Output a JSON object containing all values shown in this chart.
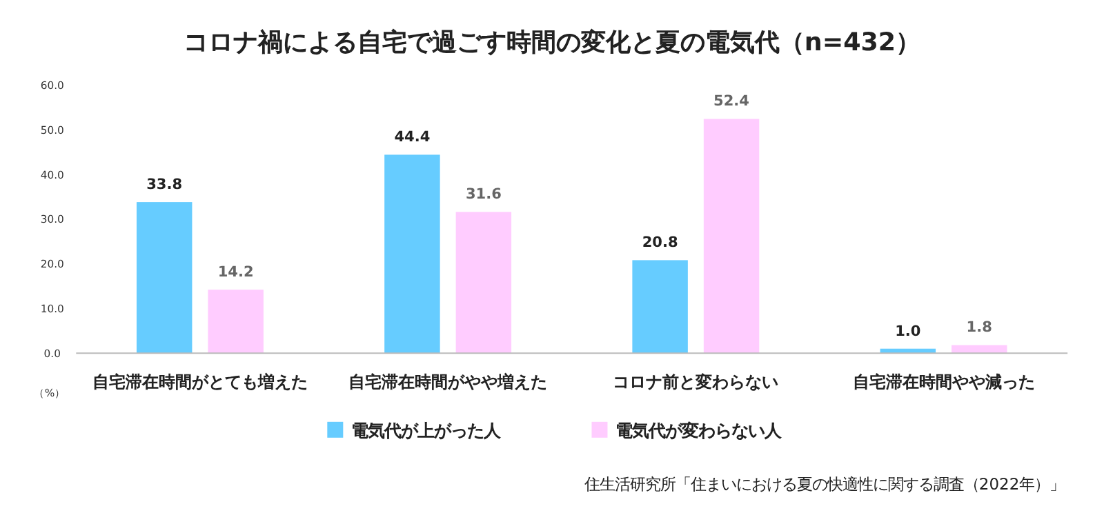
{
  "chart_data": {
    "type": "bar",
    "title": "コロナ禍による自宅で過ごす時間の変化と夏の電気代（n=432）",
    "ylabel": "（%）",
    "categories": [
      "自宅滞在時間がとても増えた",
      "自宅滞在時間がやや増えた",
      "コロナ前と変わらない",
      "自宅滞在時間やや減った"
    ],
    "series": [
      {
        "name": "電気代が上がった人",
        "color": "#66ccff",
        "values": [
          33.8,
          44.4,
          20.8,
          1.0
        ],
        "value_labels": [
          "33.8",
          "44.4",
          "20.8",
          "1.0"
        ]
      },
      {
        "name": "電気代が変わらない人",
        "color": "#ffccff",
        "values": [
          14.2,
          31.6,
          52.4,
          1.8
        ],
        "value_labels": [
          "14.2",
          "31.6",
          "52.4",
          "1.8"
        ]
      }
    ],
    "ylim": [
      0,
      60
    ],
    "yticks": [
      {
        "value": 0,
        "label": "0.0"
      },
      {
        "value": 10,
        "label": "10.0"
      },
      {
        "value": 20,
        "label": "20.0"
      },
      {
        "value": 30,
        "label": "30.0"
      },
      {
        "value": 40,
        "label": "40.0"
      },
      {
        "value": 50,
        "label": "50.0"
      },
      {
        "value": 60,
        "label": "60.0"
      }
    ],
    "legend": "bottom",
    "grid": false,
    "annotations": [
      "住生活研究所「住まいにおける夏の快適性に関する調査（2022年）」"
    ]
  }
}
